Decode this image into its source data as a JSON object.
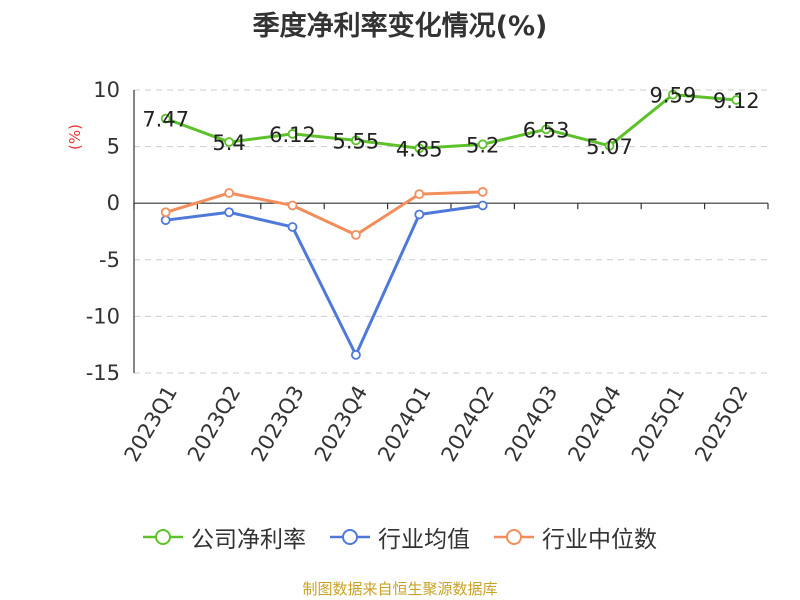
{
  "title": "季度净利率变化情况(%)",
  "source": "制图数据来自恒生聚源数据库",
  "chart_data": {
    "type": "line",
    "title": "季度净利率变化情况(%)",
    "ylabel": "(%)",
    "categories": [
      "2023Q1",
      "2023Q2",
      "2023Q3",
      "2023Q4",
      "2024Q1",
      "2024Q2",
      "2024Q3",
      "2024Q4",
      "2025Q1",
      "2025Q2"
    ],
    "yticks": [
      10,
      5,
      0,
      -5,
      -10,
      -15
    ],
    "ylim": [
      -15,
      10
    ],
    "grid": true,
    "legend_position": "bottom",
    "series": [
      {
        "name": "公司净利率",
        "color": "#5dc12b",
        "show_labels": true,
        "labels": [
          "7.47",
          "5.4",
          "6.12",
          "5.55",
          "4.85",
          "5.2",
          "6.53",
          "5.07",
          "9.59",
          "9.12"
        ],
        "values": [
          7.47,
          5.4,
          6.12,
          5.55,
          4.85,
          5.2,
          6.53,
          5.07,
          9.59,
          9.12
        ]
      },
      {
        "name": "行业均值",
        "color": "#4e79d8",
        "show_labels": false,
        "values": [
          -1.5,
          -0.8,
          -2.1,
          -13.4,
          -1.0,
          -0.2,
          null,
          null,
          null,
          null
        ]
      },
      {
        "name": "行业中位数",
        "color": "#f28e5b",
        "show_labels": false,
        "values": [
          -0.8,
          0.9,
          -0.2,
          -2.8,
          0.8,
          1.0,
          null,
          null,
          null,
          null
        ]
      }
    ]
  }
}
